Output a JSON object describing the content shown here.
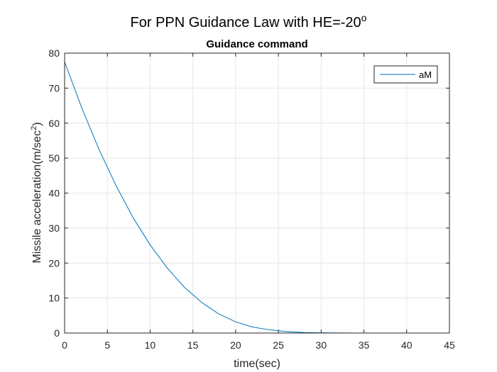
{
  "figure": {
    "suptitle_main": "For PPN Guidance Law with HE=-20",
    "suptitle_sup": "o"
  },
  "chart_data": {
    "type": "line",
    "title": "Guidance command",
    "xlabel": "time(sec)",
    "ylabel_main": "Missile acceleration(m/sec",
    "ylabel_sup": "2",
    "ylabel_end": ")",
    "xlim": [
      0,
      45
    ],
    "ylim": [
      0,
      80
    ],
    "xticks": [
      0,
      5,
      10,
      15,
      20,
      25,
      30,
      35,
      40,
      45
    ],
    "yticks": [
      0,
      10,
      20,
      30,
      40,
      50,
      60,
      70,
      80
    ],
    "grid": true,
    "legend_position": "top-right",
    "series": [
      {
        "name": "aM",
        "color": "#0072BD",
        "x": [
          0,
          2,
          4,
          6,
          8,
          10,
          12,
          14,
          16,
          18,
          20,
          22,
          24,
          26,
          28,
          30,
          32,
          34,
          36,
          38,
          40
        ],
        "y": [
          77.5,
          64.4,
          52.6,
          42.2,
          33.0,
          25.2,
          18.6,
          13.1,
          8.8,
          5.5,
          3.2,
          1.7,
          0.9,
          0.4,
          0.15,
          0.05,
          0.02,
          0.01,
          0,
          0,
          0
        ]
      }
    ]
  }
}
